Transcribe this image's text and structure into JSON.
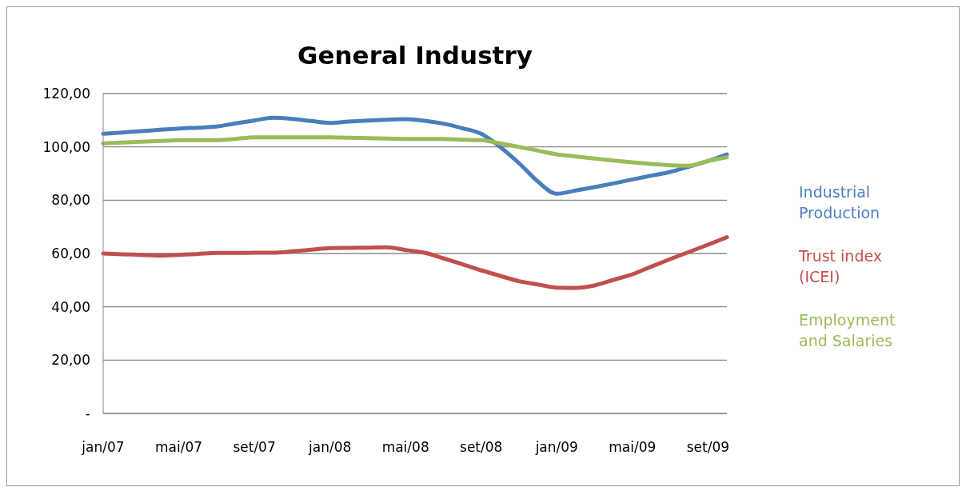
{
  "chart_data": {
    "type": "line",
    "title": "General Industry",
    "categories": [
      "jan/07",
      null,
      null,
      null,
      "mai/07",
      null,
      null,
      null,
      "set/07",
      null,
      null,
      null,
      "jan/08",
      null,
      null,
      null,
      "mai/08",
      null,
      null,
      null,
      "set/08",
      null,
      null,
      null,
      "jan/09",
      null,
      null,
      null,
      "mai/09",
      null,
      null,
      null,
      "set/09",
      null
    ],
    "series": [
      {
        "name": "Industrial Production",
        "color": "#4a7ebb",
        "values": [
          104.9,
          105.4,
          105.9,
          106.4,
          106.9,
          107.2,
          107.6,
          108.8,
          109.9,
          110.9,
          110.5,
          109.7,
          109.0,
          109.5,
          109.9,
          110.2,
          110.4,
          109.8,
          108.7,
          107.0,
          104.9,
          100.0,
          93.9,
          87.0,
          82.4,
          83.6,
          84.9,
          86.3,
          87.8,
          89.2,
          90.6,
          92.6,
          94.7,
          97.2
        ]
      },
      {
        "name": "Trust index (ICEI)",
        "color": "#c0504d",
        "values": [
          60.0,
          59.7,
          59.5,
          59.2,
          59.5,
          59.8,
          60.2,
          60.2,
          60.3,
          60.3,
          60.8,
          61.4,
          62.0,
          62.1,
          62.2,
          62.3,
          61.3,
          60.3,
          58.2,
          56.0,
          53.7,
          51.6,
          49.6,
          48.4,
          47.2,
          47.1,
          48.0,
          50.1,
          52.2,
          55.1,
          57.9,
          60.6,
          63.3,
          66.1
        ]
      },
      {
        "name": "Employment and Salaries",
        "color": "#9bbb59",
        "values": [
          101.3,
          101.6,
          101.9,
          102.2,
          102.5,
          102.5,
          102.5,
          103.0,
          103.6,
          103.6,
          103.6,
          103.6,
          103.6,
          103.4,
          103.3,
          103.1,
          103.0,
          103.0,
          103.0,
          102.7,
          102.5,
          101.3,
          100.0,
          98.6,
          97.2,
          96.4,
          95.6,
          94.9,
          94.2,
          93.6,
          93.1,
          92.9,
          94.7,
          96.1
        ]
      }
    ],
    "ylim": [
      0,
      120
    ],
    "yticks": [
      {
        "value": 0,
        "label": "-"
      },
      {
        "value": 20,
        "label": "20,00"
      },
      {
        "value": 40,
        "label": "40,00"
      },
      {
        "value": 60,
        "label": "60,00"
      },
      {
        "value": 80,
        "label": "80,00"
      },
      {
        "value": 100,
        "label": "100,00"
      },
      {
        "value": 120,
        "label": "120,00"
      }
    ],
    "grid": "y",
    "legend": "right",
    "marker": "none",
    "line_style": "solid"
  }
}
